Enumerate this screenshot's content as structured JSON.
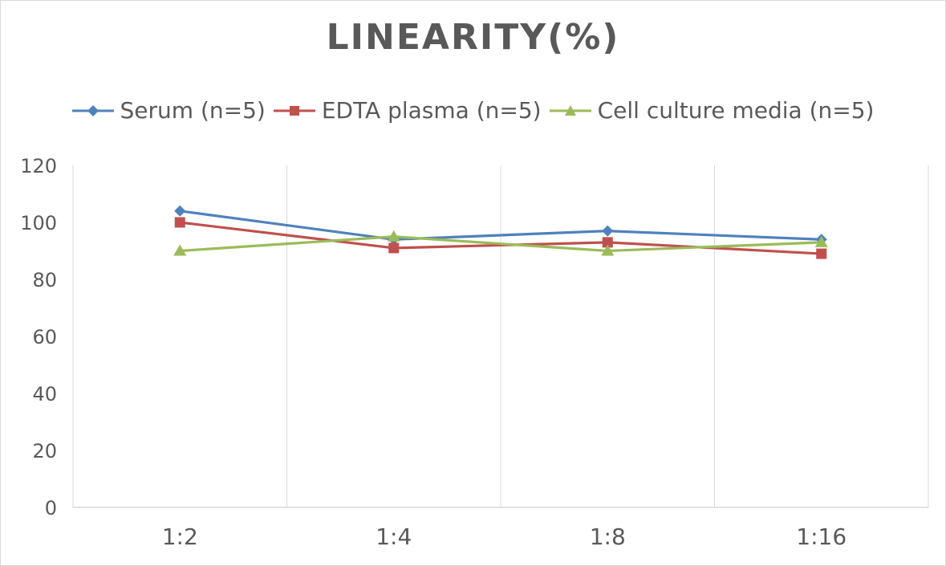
{
  "chart_data": {
    "type": "line",
    "title": "LINEARITY(%)",
    "categories": [
      "1:2",
      "1:4",
      "1:8",
      "1:16"
    ],
    "series": [
      {
        "name": "Serum (n=5)",
        "values": [
          104,
          94,
          97,
          94
        ],
        "color": "#4f81bd",
        "marker": "diamond"
      },
      {
        "name": "EDTA plasma (n=5)",
        "values": [
          100,
          91,
          93,
          89
        ],
        "color": "#c0504d",
        "marker": "square"
      },
      {
        "name": "Cell culture media (n=5)",
        "values": [
          90,
          95,
          90,
          93
        ],
        "color": "#9bbb59",
        "marker": "triangle"
      }
    ],
    "ylim": [
      0,
      120
    ],
    "yticks": [
      0,
      20,
      40,
      60,
      80,
      100,
      120
    ],
    "xlabel": "",
    "ylabel": "",
    "grid": "vertical",
    "legend": "top"
  }
}
